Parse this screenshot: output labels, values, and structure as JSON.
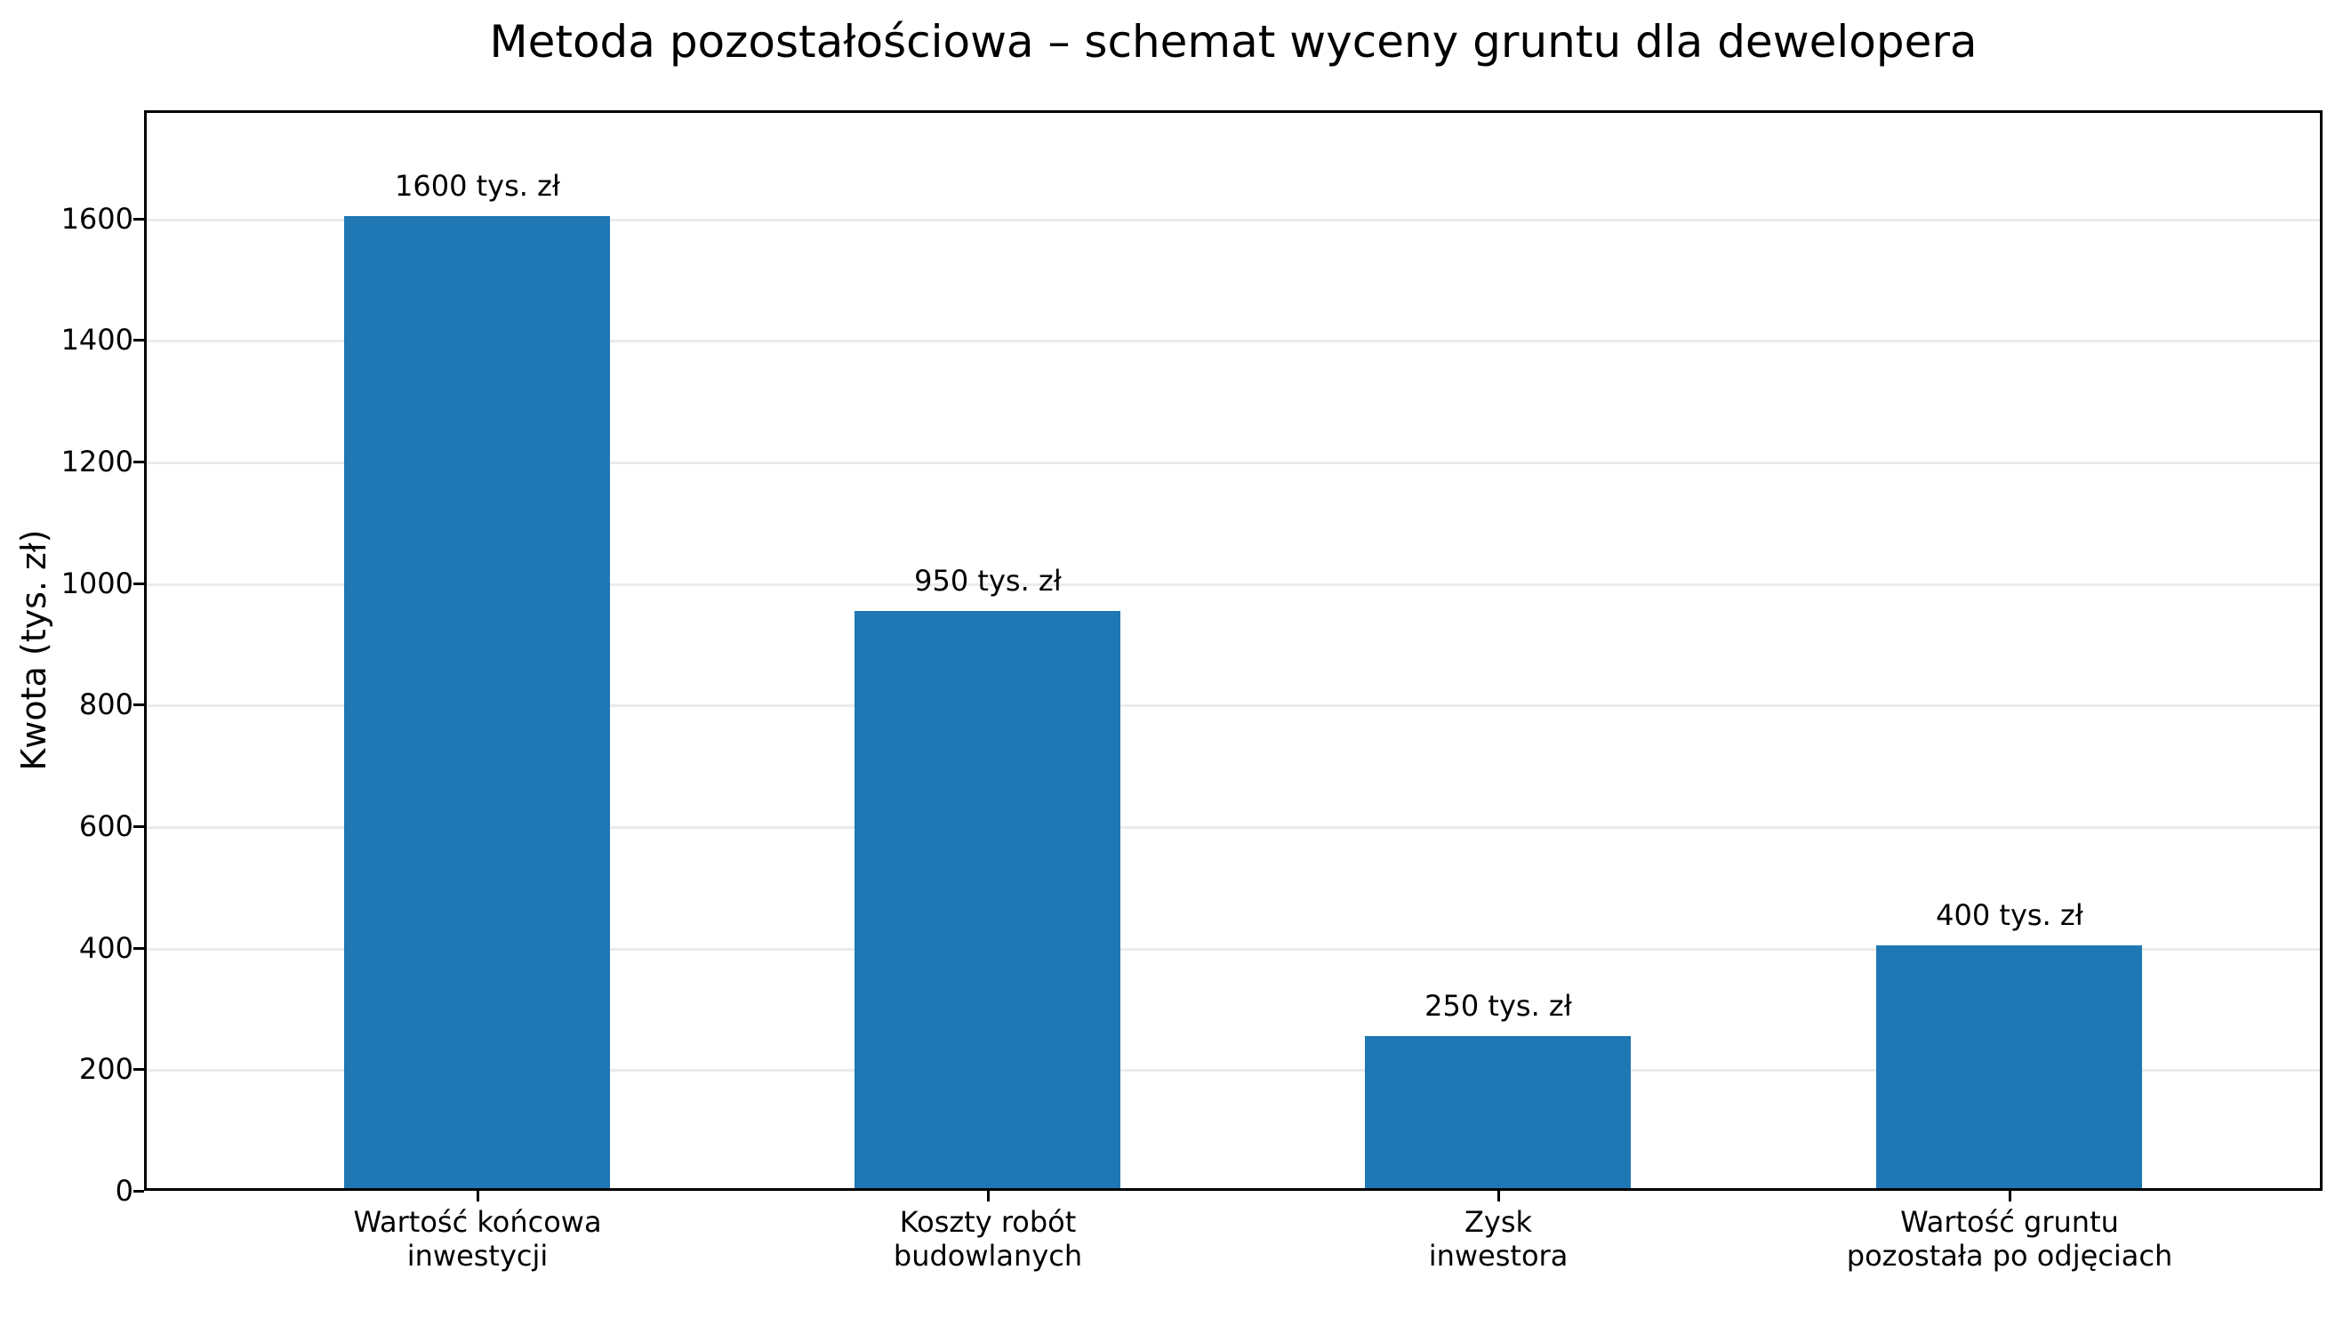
{
  "chart_data": {
    "type": "bar",
    "title": "Metoda pozostałościowa – schemat wyceny gruntu dla dewelopera",
    "xlabel": "",
    "ylabel": "Kwota (tys. zł)",
    "categories": [
      "Wartość końcowa\ninwestycji",
      "Koszty robót\nbudowlanych",
      "Zysk\ninwestora",
      "Wartość gruntu\npozostała po odjęciach"
    ],
    "values": [
      1600,
      950,
      250,
      400
    ],
    "data_labels": [
      "1600 tys. zł",
      "950 tys. zł",
      "250 tys. zł",
      "400 tys. zł"
    ],
    "yticks": [
      0,
      200,
      400,
      600,
      800,
      1000,
      1200,
      1400,
      1600
    ],
    "ylim": [
      0,
      1780
    ],
    "grid": "y",
    "legend": null,
    "bar_color": "#1f77b4"
  },
  "categories_lines": [
    [
      "Wartość końcowa",
      "inwestycji"
    ],
    [
      "Koszty robót",
      "budowlanych"
    ],
    [
      "Zysk",
      "inwestora"
    ],
    [
      "Wartość gruntu",
      "pozostała po odjęciach"
    ]
  ]
}
